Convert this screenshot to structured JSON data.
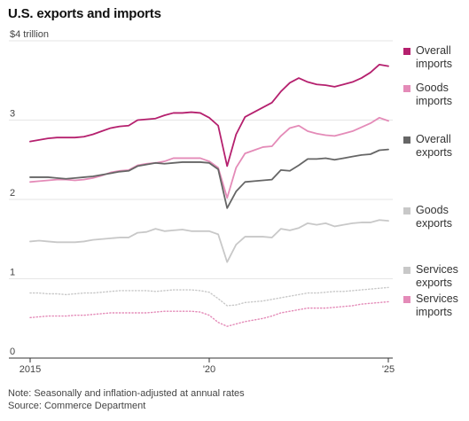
{
  "title": "U.S. exports and imports",
  "note": "Note: Seasonally and inflation-adjusted at annual rates",
  "source": "Source: Commerce Department",
  "chart_data": {
    "type": "line",
    "title": "U.S. exports and imports",
    "xlabel": "",
    "ylabel": "",
    "ylim": [
      0,
      4
    ],
    "xlim": [
      2015.0,
      2025.0
    ],
    "y_ticks": [
      {
        "value": 4,
        "label": "$4 trillion"
      },
      {
        "value": 3,
        "label": "3"
      },
      {
        "value": 2,
        "label": "2"
      },
      {
        "value": 1,
        "label": "1"
      },
      {
        "value": 0,
        "label": "0"
      }
    ],
    "x_ticks": [
      {
        "value": 2015,
        "label": "2015"
      },
      {
        "value": 2020,
        "label": "'20"
      },
      {
        "value": 2025,
        "label": "'25"
      }
    ],
    "grid": true,
    "legend_position": "right",
    "x": [
      2015.0,
      2015.25,
      2015.5,
      2015.75,
      2016.0,
      2016.25,
      2016.5,
      2016.75,
      2017.0,
      2017.25,
      2017.5,
      2017.75,
      2018.0,
      2018.25,
      2018.5,
      2018.75,
      2019.0,
      2019.25,
      2019.5,
      2019.75,
      2020.0,
      2020.25,
      2020.5,
      2020.75,
      2021.0,
      2021.25,
      2021.5,
      2021.75,
      2022.0,
      2022.25,
      2022.5,
      2022.75,
      2023.0,
      2023.25,
      2023.5,
      2023.75,
      2024.0,
      2024.25,
      2024.5,
      2024.75,
      2025.0
    ],
    "series": [
      {
        "name": "Overall imports",
        "color": "#b5206e",
        "style": "solid",
        "values": [
          2.73,
          2.75,
          2.77,
          2.78,
          2.78,
          2.78,
          2.79,
          2.82,
          2.86,
          2.9,
          2.92,
          2.93,
          3.0,
          3.01,
          3.02,
          3.06,
          3.09,
          3.09,
          3.1,
          3.09,
          3.03,
          2.93,
          2.42,
          2.82,
          3.04,
          3.1,
          3.16,
          3.22,
          3.36,
          3.47,
          3.53,
          3.48,
          3.45,
          3.44,
          3.42,
          3.45,
          3.48,
          3.53,
          3.6,
          3.7,
          3.68
        ]
      },
      {
        "name": "Goods imports",
        "color": "#e48bb8",
        "style": "solid",
        "values": [
          2.22,
          2.23,
          2.24,
          2.25,
          2.25,
          2.24,
          2.25,
          2.27,
          2.3,
          2.34,
          2.36,
          2.37,
          2.43,
          2.45,
          2.46,
          2.48,
          2.52,
          2.52,
          2.52,
          2.52,
          2.48,
          2.4,
          2.02,
          2.4,
          2.58,
          2.62,
          2.66,
          2.67,
          2.8,
          2.9,
          2.93,
          2.86,
          2.83,
          2.81,
          2.8,
          2.83,
          2.86,
          2.91,
          2.96,
          3.03,
          2.99
        ]
      },
      {
        "name": "Overall exports",
        "color": "#666666",
        "style": "solid",
        "values": [
          2.28,
          2.28,
          2.28,
          2.27,
          2.26,
          2.27,
          2.28,
          2.29,
          2.31,
          2.33,
          2.35,
          2.36,
          2.42,
          2.44,
          2.46,
          2.45,
          2.46,
          2.47,
          2.47,
          2.47,
          2.46,
          2.38,
          1.89,
          2.1,
          2.22,
          2.23,
          2.24,
          2.25,
          2.37,
          2.36,
          2.43,
          2.51,
          2.51,
          2.52,
          2.5,
          2.52,
          2.54,
          2.56,
          2.57,
          2.62,
          2.63
        ]
      },
      {
        "name": "Goods exports",
        "color": "#c8c8c8",
        "style": "solid",
        "values": [
          1.47,
          1.48,
          1.47,
          1.46,
          1.46,
          1.46,
          1.47,
          1.49,
          1.5,
          1.51,
          1.52,
          1.52,
          1.58,
          1.59,
          1.63,
          1.6,
          1.61,
          1.62,
          1.6,
          1.6,
          1.6,
          1.56,
          1.21,
          1.43,
          1.53,
          1.53,
          1.53,
          1.52,
          1.63,
          1.61,
          1.64,
          1.7,
          1.68,
          1.7,
          1.66,
          1.68,
          1.7,
          1.71,
          1.71,
          1.74,
          1.73
        ]
      },
      {
        "name": "Services exports",
        "color": "#c8c8c8",
        "style": "dotted",
        "values": [
          0.82,
          0.82,
          0.81,
          0.81,
          0.8,
          0.81,
          0.82,
          0.82,
          0.83,
          0.84,
          0.85,
          0.85,
          0.85,
          0.85,
          0.84,
          0.85,
          0.86,
          0.86,
          0.86,
          0.85,
          0.83,
          0.75,
          0.66,
          0.67,
          0.7,
          0.71,
          0.72,
          0.74,
          0.76,
          0.78,
          0.8,
          0.82,
          0.82,
          0.83,
          0.84,
          0.84,
          0.85,
          0.86,
          0.87,
          0.88,
          0.89
        ]
      },
      {
        "name": "Services imports",
        "color": "#e48bb8",
        "style": "dotted",
        "values": [
          0.51,
          0.52,
          0.53,
          0.53,
          0.53,
          0.54,
          0.54,
          0.55,
          0.56,
          0.57,
          0.57,
          0.57,
          0.57,
          0.57,
          0.58,
          0.59,
          0.59,
          0.59,
          0.59,
          0.58,
          0.54,
          0.45,
          0.4,
          0.43,
          0.46,
          0.48,
          0.5,
          0.53,
          0.57,
          0.59,
          0.61,
          0.63,
          0.63,
          0.63,
          0.64,
          0.65,
          0.66,
          0.68,
          0.69,
          0.7,
          0.71
        ]
      }
    ]
  }
}
